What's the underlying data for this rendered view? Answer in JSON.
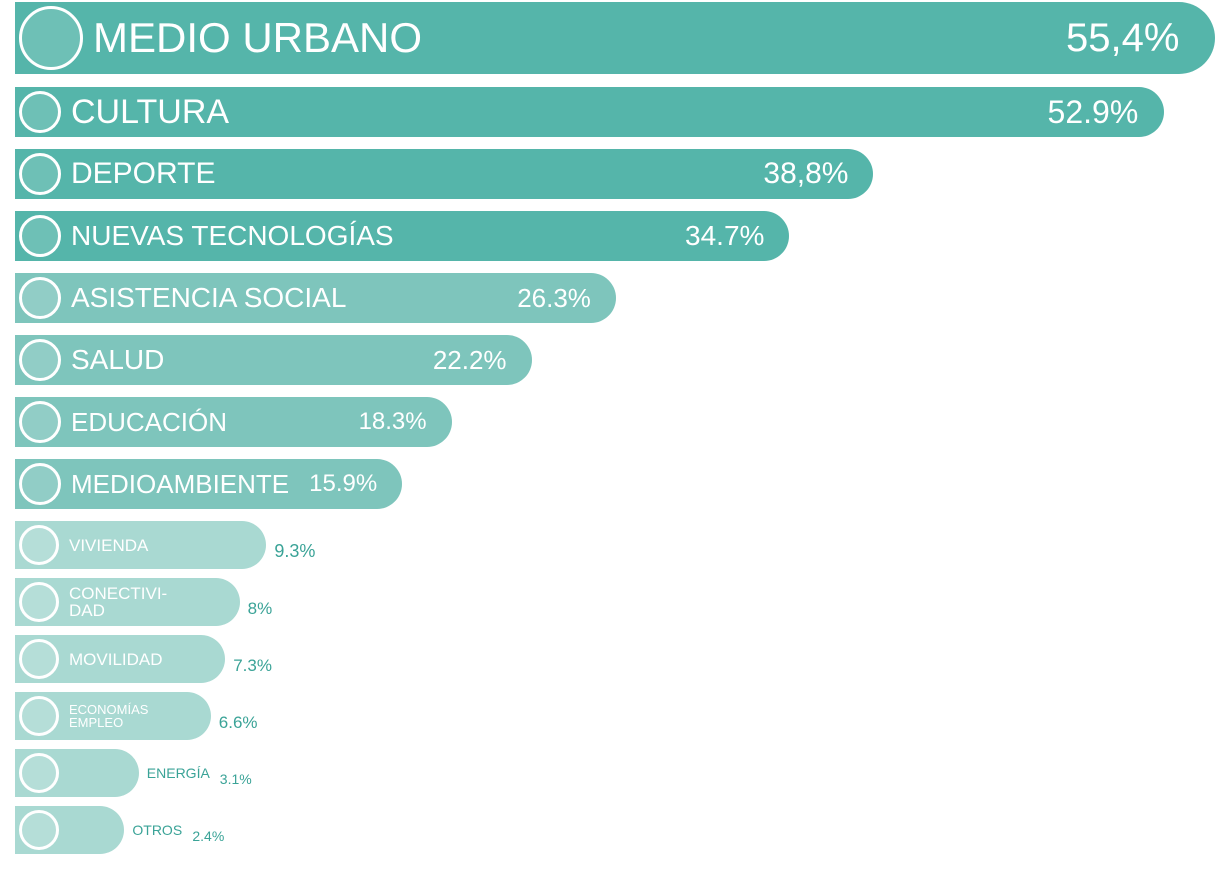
{
  "chart_data": {
    "type": "bar",
    "categories": [
      "MEDIO URBANO",
      "CULTURA",
      "DEPORTE",
      "NUEVAS TECNOLOGÍAS",
      "ASISTENCIA SOCIAL",
      "SALUD",
      "EDUCACIÓN",
      "MEDIOAMBIENTE",
      "VIVIENDA",
      "CONECTIVI-\nDAD",
      "MOVILIDAD",
      "ECONOMÍAS\nEMPLEO",
      "ENERGÍA",
      "OTROS"
    ],
    "values": [
      55.4,
      52.9,
      38.8,
      34.7,
      26.3,
      22.2,
      18.3,
      15.9,
      9.3,
      8,
      7.3,
      6.6,
      3.1,
      2.4
    ],
    "value_labels": [
      "55,4%",
      "52.9%",
      "38,8%",
      "34.7%",
      "26.3%",
      "22.2%",
      "18.3%",
      "15.9%",
      "9.3%",
      "8%",
      "7.3%",
      "6.6%",
      "3.1%",
      "2.4%"
    ],
    "colors": [
      "#55b5aa",
      "#55b5aa",
      "#55b5aa",
      "#55b5aa",
      "#7ec5bc",
      "#7ec5bc",
      "#7ec5bc",
      "#7ec5bc",
      "#a9d9d2",
      "#a9d9d2",
      "#a9d9d2",
      "#a9d9d2",
      "#a9d9d2",
      "#a9d9d2"
    ]
  }
}
